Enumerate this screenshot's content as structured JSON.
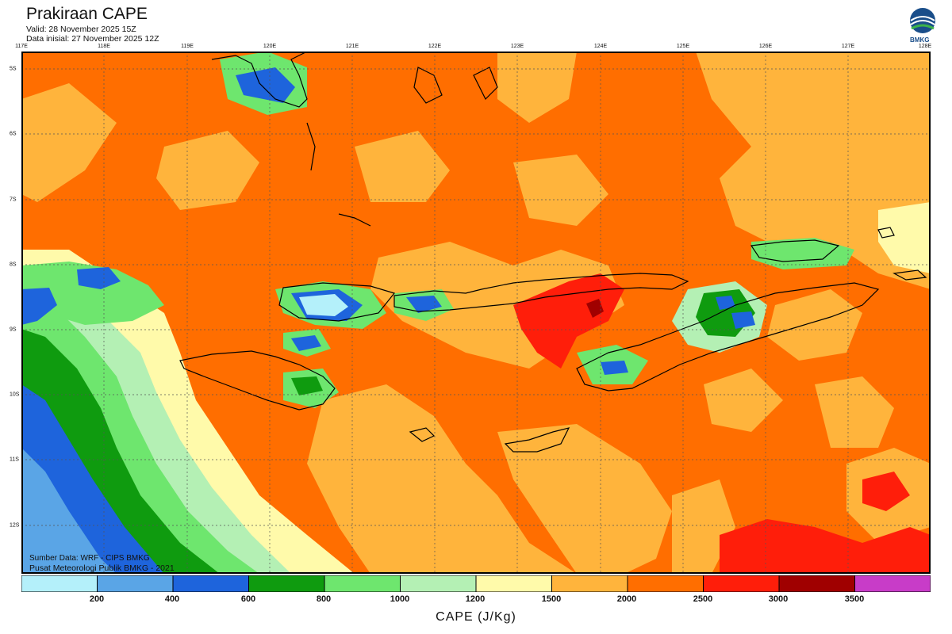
{
  "header": {
    "title": "Prakiraan CAPE",
    "valid": "Valid: 28 November 2025 15Z",
    "init": "Data inisial: 27 November 2025 12Z",
    "logo_text": "BMKG"
  },
  "map": {
    "lon_labels": [
      "117E",
      "118E",
      "119E",
      "120E",
      "121E",
      "122E",
      "123E",
      "124E",
      "125E",
      "126E",
      "127E",
      "128E"
    ],
    "lat_labels": [
      "5S",
      "6S",
      "7S",
      "8S",
      "9S",
      "10S",
      "11S",
      "12S"
    ],
    "credit_source": "Sumber Data: WRF - CIPS BMKG",
    "credit_org": "Pusat Meteorologi Publik BMKG - 2021"
  },
  "legend": {
    "colors": [
      "#b4f0fa",
      "#5aa5e6",
      "#1e64dc",
      "#0f9b0f",
      "#6ee66e",
      "#b4f0b4",
      "#fffaaa",
      "#ffb43c",
      "#ff6e00",
      "#ff1e0a",
      "#a00000",
      "#c83cc8"
    ],
    "ticks": [
      "200",
      "400",
      "600",
      "800",
      "1000",
      "1200",
      "1500",
      "2000",
      "2500",
      "3000",
      "3500"
    ],
    "title": "CAPE (J/Kg)"
  }
}
